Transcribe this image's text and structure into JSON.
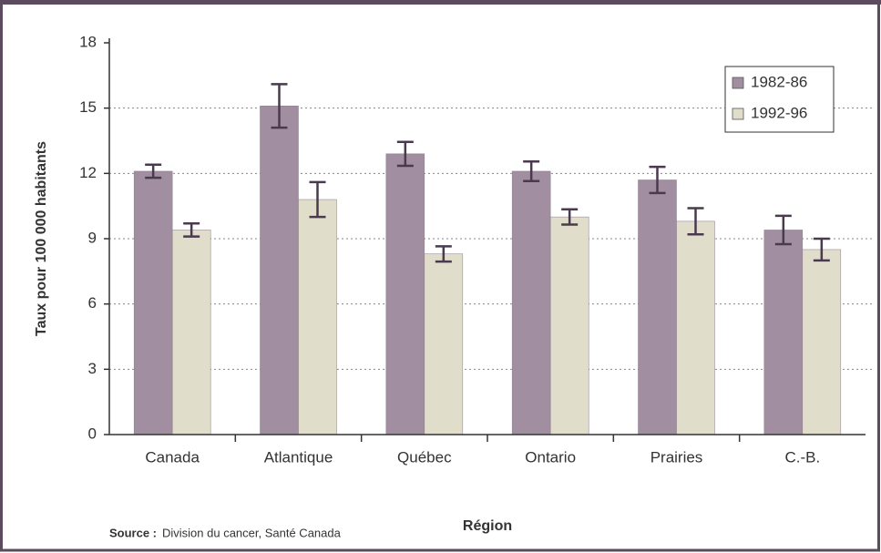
{
  "chart_data": {
    "type": "bar",
    "y_label": "Taux pour 100 000 habitants",
    "x_label": "Région",
    "source_label": "Source :",
    "source_text": "Division du cancer, Santé Canada",
    "categories": [
      "Canada",
      "Atlantique",
      "Québec",
      "Ontario",
      "Prairies",
      "C.-B."
    ],
    "series": [
      {
        "name": "1982-86",
        "color": "#a18fa1",
        "values": [
          12.1,
          15.1,
          12.9,
          12.1,
          11.7,
          9.4
        ],
        "errors": [
          0.3,
          1.0,
          0.55,
          0.45,
          0.6,
          0.65
        ]
      },
      {
        "name": "1992-96",
        "color": "#e1ddcb",
        "values": [
          9.4,
          10.8,
          8.3,
          10.0,
          9.8,
          8.5
        ],
        "errors": [
          0.3,
          0.8,
          0.35,
          0.35,
          0.6,
          0.5
        ]
      }
    ],
    "ylim": [
      0,
      18
    ],
    "yticks": [
      0,
      3,
      6,
      9,
      12,
      15,
      18
    ],
    "grid": true,
    "legend": "top-right"
  }
}
